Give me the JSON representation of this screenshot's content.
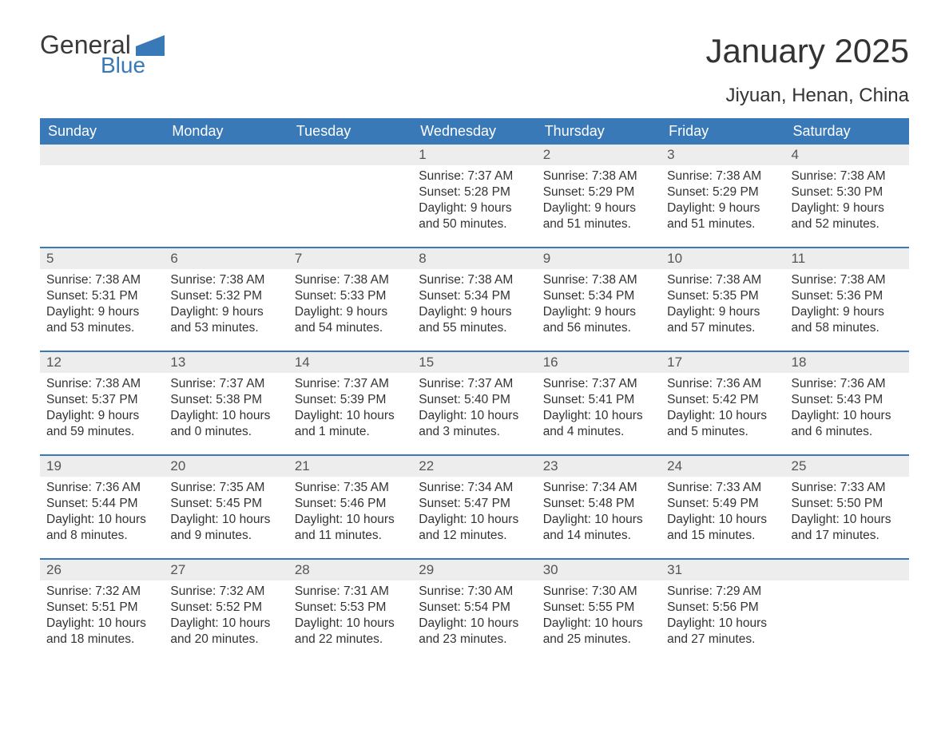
{
  "brand": {
    "word1": "General",
    "word2": "Blue",
    "text_color": "#3a3a3a",
    "accent_color": "#3a79b7"
  },
  "title": "January 2025",
  "subtitle": "Jiyuan, Henan, China",
  "colors": {
    "header_bg": "#3a79b7",
    "header_text": "#ffffff",
    "daynum_bg": "#ededed",
    "body_bg": "#ffffff",
    "text": "#333333",
    "rule": "#3a79b7"
  },
  "fonts": {
    "title_size_pt": 32,
    "subtitle_size_pt": 18,
    "dayhead_size_pt": 14,
    "body_size_pt": 11.5
  },
  "day_headers": [
    "Sunday",
    "Monday",
    "Tuesday",
    "Wednesday",
    "Thursday",
    "Friday",
    "Saturday"
  ],
  "weeks": [
    [
      {
        "n": "",
        "sr": "",
        "ss": "",
        "dl": ""
      },
      {
        "n": "",
        "sr": "",
        "ss": "",
        "dl": ""
      },
      {
        "n": "",
        "sr": "",
        "ss": "",
        "dl": ""
      },
      {
        "n": "1",
        "sr": "Sunrise: 7:37 AM",
        "ss": "Sunset: 5:28 PM",
        "dl": "Daylight: 9 hours and 50 minutes."
      },
      {
        "n": "2",
        "sr": "Sunrise: 7:38 AM",
        "ss": "Sunset: 5:29 PM",
        "dl": "Daylight: 9 hours and 51 minutes."
      },
      {
        "n": "3",
        "sr": "Sunrise: 7:38 AM",
        "ss": "Sunset: 5:29 PM",
        "dl": "Daylight: 9 hours and 51 minutes."
      },
      {
        "n": "4",
        "sr": "Sunrise: 7:38 AM",
        "ss": "Sunset: 5:30 PM",
        "dl": "Daylight: 9 hours and 52 minutes."
      }
    ],
    [
      {
        "n": "5",
        "sr": "Sunrise: 7:38 AM",
        "ss": "Sunset: 5:31 PM",
        "dl": "Daylight: 9 hours and 53 minutes."
      },
      {
        "n": "6",
        "sr": "Sunrise: 7:38 AM",
        "ss": "Sunset: 5:32 PM",
        "dl": "Daylight: 9 hours and 53 minutes."
      },
      {
        "n": "7",
        "sr": "Sunrise: 7:38 AM",
        "ss": "Sunset: 5:33 PM",
        "dl": "Daylight: 9 hours and 54 minutes."
      },
      {
        "n": "8",
        "sr": "Sunrise: 7:38 AM",
        "ss": "Sunset: 5:34 PM",
        "dl": "Daylight: 9 hours and 55 minutes."
      },
      {
        "n": "9",
        "sr": "Sunrise: 7:38 AM",
        "ss": "Sunset: 5:34 PM",
        "dl": "Daylight: 9 hours and 56 minutes."
      },
      {
        "n": "10",
        "sr": "Sunrise: 7:38 AM",
        "ss": "Sunset: 5:35 PM",
        "dl": "Daylight: 9 hours and 57 minutes."
      },
      {
        "n": "11",
        "sr": "Sunrise: 7:38 AM",
        "ss": "Sunset: 5:36 PM",
        "dl": "Daylight: 9 hours and 58 minutes."
      }
    ],
    [
      {
        "n": "12",
        "sr": "Sunrise: 7:38 AM",
        "ss": "Sunset: 5:37 PM",
        "dl": "Daylight: 9 hours and 59 minutes."
      },
      {
        "n": "13",
        "sr": "Sunrise: 7:37 AM",
        "ss": "Sunset: 5:38 PM",
        "dl": "Daylight: 10 hours and 0 minutes."
      },
      {
        "n": "14",
        "sr": "Sunrise: 7:37 AM",
        "ss": "Sunset: 5:39 PM",
        "dl": "Daylight: 10 hours and 1 minute."
      },
      {
        "n": "15",
        "sr": "Sunrise: 7:37 AM",
        "ss": "Sunset: 5:40 PM",
        "dl": "Daylight: 10 hours and 3 minutes."
      },
      {
        "n": "16",
        "sr": "Sunrise: 7:37 AM",
        "ss": "Sunset: 5:41 PM",
        "dl": "Daylight: 10 hours and 4 minutes."
      },
      {
        "n": "17",
        "sr": "Sunrise: 7:36 AM",
        "ss": "Sunset: 5:42 PM",
        "dl": "Daylight: 10 hours and 5 minutes."
      },
      {
        "n": "18",
        "sr": "Sunrise: 7:36 AM",
        "ss": "Sunset: 5:43 PM",
        "dl": "Daylight: 10 hours and 6 minutes."
      }
    ],
    [
      {
        "n": "19",
        "sr": "Sunrise: 7:36 AM",
        "ss": "Sunset: 5:44 PM",
        "dl": "Daylight: 10 hours and 8 minutes."
      },
      {
        "n": "20",
        "sr": "Sunrise: 7:35 AM",
        "ss": "Sunset: 5:45 PM",
        "dl": "Daylight: 10 hours and 9 minutes."
      },
      {
        "n": "21",
        "sr": "Sunrise: 7:35 AM",
        "ss": "Sunset: 5:46 PM",
        "dl": "Daylight: 10 hours and 11 minutes."
      },
      {
        "n": "22",
        "sr": "Sunrise: 7:34 AM",
        "ss": "Sunset: 5:47 PM",
        "dl": "Daylight: 10 hours and 12 minutes."
      },
      {
        "n": "23",
        "sr": "Sunrise: 7:34 AM",
        "ss": "Sunset: 5:48 PM",
        "dl": "Daylight: 10 hours and 14 minutes."
      },
      {
        "n": "24",
        "sr": "Sunrise: 7:33 AM",
        "ss": "Sunset: 5:49 PM",
        "dl": "Daylight: 10 hours and 15 minutes."
      },
      {
        "n": "25",
        "sr": "Sunrise: 7:33 AM",
        "ss": "Sunset: 5:50 PM",
        "dl": "Daylight: 10 hours and 17 minutes."
      }
    ],
    [
      {
        "n": "26",
        "sr": "Sunrise: 7:32 AM",
        "ss": "Sunset: 5:51 PM",
        "dl": "Daylight: 10 hours and 18 minutes."
      },
      {
        "n": "27",
        "sr": "Sunrise: 7:32 AM",
        "ss": "Sunset: 5:52 PM",
        "dl": "Daylight: 10 hours and 20 minutes."
      },
      {
        "n": "28",
        "sr": "Sunrise: 7:31 AM",
        "ss": "Sunset: 5:53 PM",
        "dl": "Daylight: 10 hours and 22 minutes."
      },
      {
        "n": "29",
        "sr": "Sunrise: 7:30 AM",
        "ss": "Sunset: 5:54 PM",
        "dl": "Daylight: 10 hours and 23 minutes."
      },
      {
        "n": "30",
        "sr": "Sunrise: 7:30 AM",
        "ss": "Sunset: 5:55 PM",
        "dl": "Daylight: 10 hours and 25 minutes."
      },
      {
        "n": "31",
        "sr": "Sunrise: 7:29 AM",
        "ss": "Sunset: 5:56 PM",
        "dl": "Daylight: 10 hours and 27 minutes."
      },
      {
        "n": "",
        "sr": "",
        "ss": "",
        "dl": ""
      }
    ]
  ]
}
